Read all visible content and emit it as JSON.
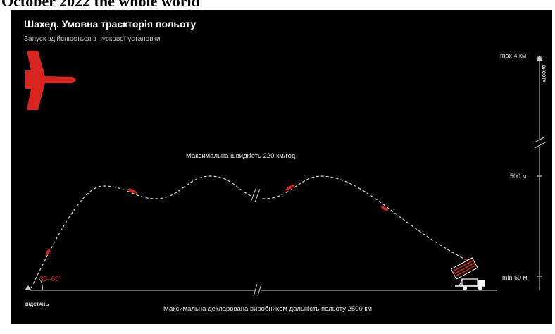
{
  "header_fragment": "October 2022 the whole world",
  "title": "Шахед. Умовна траєкторія польоту",
  "subtitle": "Запуск здійснюється з пускової установки",
  "speed_label": "Максимальна швидкість 220 км/год",
  "range_label": "Максимальна декларована виробником дальність польоту 2500 км",
  "distance_axis_label": "ВІДСТАНЬ",
  "altitude_axis_label": "ВИСОТА",
  "launch_angle": "30–60°",
  "altitude_ticks": {
    "max": "max 4 км",
    "mid": "500 м",
    "min": "min 60 м"
  },
  "colors": {
    "background": "#000000",
    "accent": "#d7241f",
    "trajectory": "#cfcfcf",
    "text": "#ffffff"
  },
  "icons": [
    "shahed-drone-icon",
    "launcher-truck-icon",
    "launch-angle-icon",
    "axis-break-icon"
  ]
}
